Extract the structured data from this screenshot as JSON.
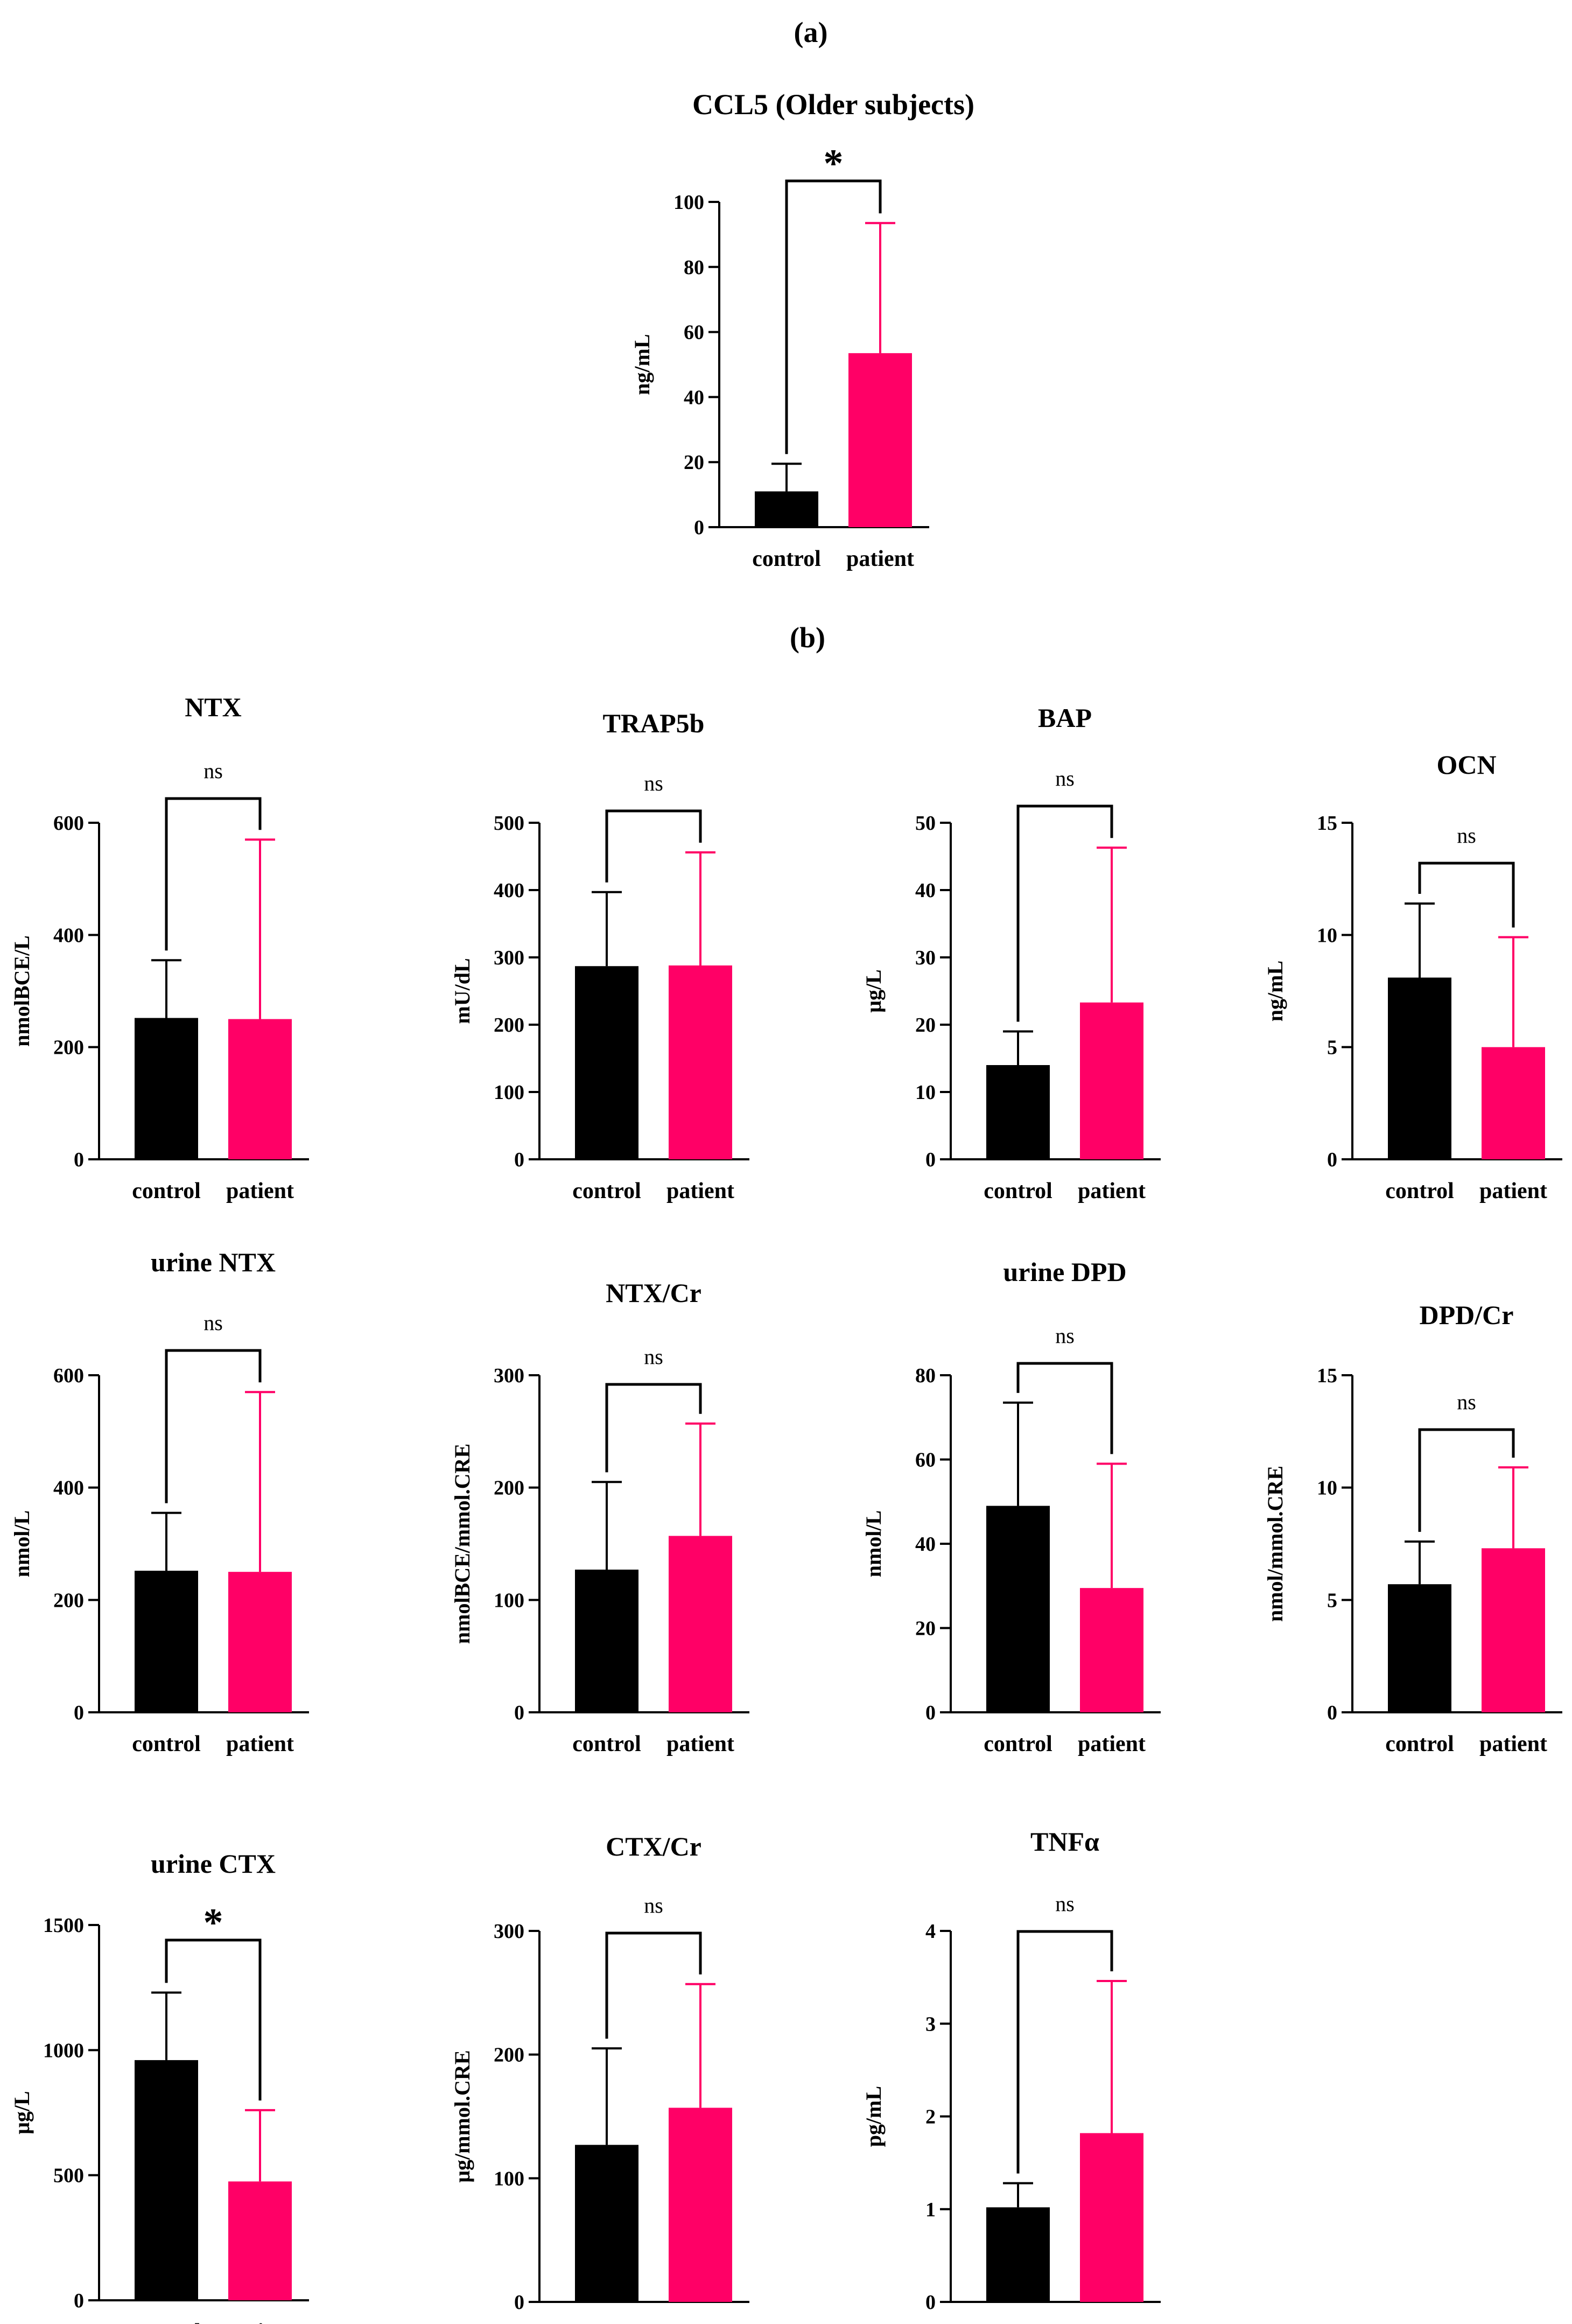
{
  "panel_labels": {
    "a": "(a)",
    "b": "(b)"
  },
  "colors": {
    "control": "#000000",
    "patient": "#ff0066",
    "axis": "#000000"
  },
  "chart_data": [
    {
      "type": "bar",
      "title": "CCL5 (Older subjects)",
      "ylabel": "ng/mL",
      "categories": [
        "control",
        "patient"
      ],
      "values": [
        11,
        53.5
      ],
      "errors": [
        8.5,
        40
      ],
      "ylim": [
        0,
        100
      ],
      "yticks": [
        0,
        20,
        40,
        60,
        80,
        100
      ],
      "significance": "*",
      "grid": false
    },
    {
      "type": "bar",
      "title": "NTX",
      "ylabel": "nmolBCE/L",
      "categories": [
        "control",
        "patient"
      ],
      "values": [
        252,
        250
      ],
      "errors": [
        103,
        320
      ],
      "ylim": [
        0,
        600
      ],
      "yticks": [
        0,
        200,
        400,
        600
      ],
      "significance": "ns",
      "grid": false
    },
    {
      "type": "bar",
      "title": "TRAP5b",
      "ylabel": "mU/dL",
      "categories": [
        "control",
        "patient"
      ],
      "values": [
        287,
        288
      ],
      "errors": [
        110,
        168
      ],
      "ylim": [
        0,
        500
      ],
      "yticks": [
        0,
        100,
        200,
        300,
        400,
        500
      ],
      "significance": "ns",
      "grid": false
    },
    {
      "type": "bar",
      "title": "BAP",
      "ylabel": "μg/L",
      "categories": [
        "control",
        "patient"
      ],
      "values": [
        14,
        23.3
      ],
      "errors": [
        5,
        23
      ],
      "ylim": [
        0,
        50
      ],
      "yticks": [
        0,
        10,
        20,
        30,
        40,
        50
      ],
      "significance": "ns",
      "grid": false
    },
    {
      "type": "bar",
      "title": "OCN",
      "ylabel": "ng/mL",
      "categories": [
        "control",
        "patient"
      ],
      "values": [
        8.1,
        5
      ],
      "errors": [
        3.3,
        4.9
      ],
      "ylim": [
        0,
        15
      ],
      "yticks": [
        0,
        5,
        10,
        15
      ],
      "significance": "ns",
      "grid": false
    },
    {
      "type": "bar",
      "title": "urine NTX",
      "ylabel": "nmol/L",
      "categories": [
        "control",
        "patient"
      ],
      "values": [
        252,
        250
      ],
      "errors": [
        103,
        320
      ],
      "ylim": [
        0,
        600
      ],
      "yticks": [
        0,
        200,
        400,
        600
      ],
      "significance": "ns",
      "grid": false
    },
    {
      "type": "bar",
      "title": "NTX/Cr",
      "ylabel": "nmolBCE/mmol.CRE",
      "categories": [
        "control",
        "patient"
      ],
      "values": [
        127,
        157
      ],
      "errors": [
        78,
        100
      ],
      "ylim": [
        0,
        300
      ],
      "yticks": [
        0,
        100,
        200,
        300
      ],
      "significance": "ns",
      "grid": false
    },
    {
      "type": "bar",
      "title": "urine DPD",
      "ylabel": "nmol/L",
      "categories": [
        "control",
        "patient"
      ],
      "values": [
        49,
        29.5
      ],
      "errors": [
        24.5,
        29.5
      ],
      "ylim": [
        0,
        80
      ],
      "yticks": [
        0,
        20,
        40,
        60,
        80
      ],
      "significance": "ns",
      "grid": false
    },
    {
      "type": "bar",
      "title": "DPD/Cr",
      "ylabel": "nmol/mmol.CRE",
      "categories": [
        "control",
        "patient"
      ],
      "values": [
        5.7,
        7.3
      ],
      "errors": [
        1.9,
        3.6
      ],
      "ylim": [
        0,
        15
      ],
      "yticks": [
        0,
        5,
        10,
        15
      ],
      "significance": "ns",
      "grid": false
    },
    {
      "type": "bar",
      "title": "urine CTX",
      "ylabel": "μg/L",
      "categories": [
        "control",
        "patient"
      ],
      "values": [
        960,
        475
      ],
      "errors": [
        270,
        285
      ],
      "ylim": [
        0,
        1500
      ],
      "yticks": [
        0,
        500,
        1000,
        1500
      ],
      "significance": "*",
      "grid": false
    },
    {
      "type": "bar",
      "title": "CTX/Cr",
      "ylabel": "μg/mmol.CRE",
      "categories": [
        "control",
        "patient"
      ],
      "values": [
        127,
        157
      ],
      "errors": [
        78,
        100
      ],
      "ylim": [
        0,
        300
      ],
      "yticks": [
        0,
        100,
        200,
        300
      ],
      "significance": "ns",
      "grid": false
    },
    {
      "type": "bar",
      "title": "TNFα",
      "ylabel": "pg/mL",
      "categories": [
        "control",
        "patient"
      ],
      "values": [
        1.02,
        1.82
      ],
      "errors": [
        0.26,
        1.64
      ],
      "ylim": [
        0,
        4
      ],
      "yticks": [
        0,
        1,
        2,
        3,
        4
      ],
      "significance": "ns",
      "grid": false
    }
  ]
}
